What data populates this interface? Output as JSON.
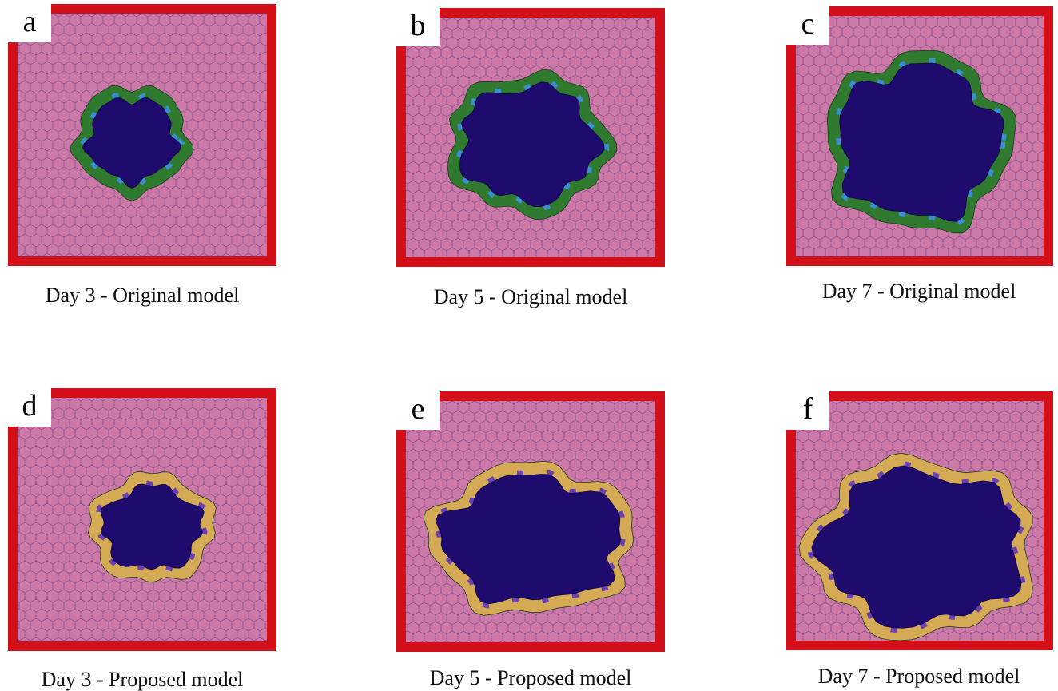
{
  "panels": [
    {
      "letter": "a",
      "caption": "Day 3 - Original model"
    },
    {
      "letter": "b",
      "caption": "Day 5 - Original model"
    },
    {
      "letter": "c",
      "caption": "Day 7 - Original model"
    },
    {
      "letter": "d",
      "caption": "Day 3 - Proposed model"
    },
    {
      "letter": "e",
      "caption": "Day 5 - Proposed model"
    },
    {
      "letter": "f",
      "caption": "Day 7 - Proposed model"
    }
  ]
}
